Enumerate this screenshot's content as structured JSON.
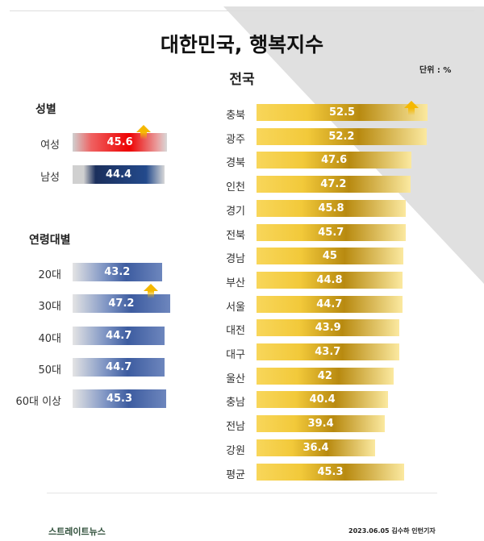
{
  "title": "대한민국, 행복지수",
  "footer": {
    "logo": "스트레이트뉴스",
    "credit": "2023.06.05 김수하 인턴기자"
  },
  "chart_data": [
    {
      "type": "bar",
      "orientation": "horizontal",
      "title": "전국",
      "unit_label": "단위 : %",
      "categories": [
        "충북",
        "광주",
        "경북",
        "인천",
        "경기",
        "전북",
        "경남",
        "부산",
        "서울",
        "대전",
        "대구",
        "울산",
        "충남",
        "전남",
        "강원",
        "평균"
      ],
      "values": [
        52.5,
        52.2,
        47.6,
        47.2,
        45.8,
        45.7,
        45,
        44.8,
        44.7,
        43.9,
        43.7,
        42,
        40.4,
        39.4,
        36.4,
        45.3
      ],
      "highlight": "충북",
      "color": "#e8b923"
    },
    {
      "type": "bar",
      "orientation": "horizontal",
      "title": "성별",
      "categories": [
        "여성",
        "남성"
      ],
      "values": [
        45.6,
        44.4
      ],
      "highlight": "여성",
      "colors": [
        "#ee1c1c",
        "#1f3a70"
      ]
    },
    {
      "type": "bar",
      "orientation": "horizontal",
      "title": "연령대별",
      "categories": [
        "20대",
        "30대",
        "40대",
        "50대",
        "60대 이상"
      ],
      "values": [
        43.2,
        47.2,
        44.7,
        44.7,
        45.3
      ],
      "highlight": "30대",
      "color": "#4a67a6"
    }
  ]
}
